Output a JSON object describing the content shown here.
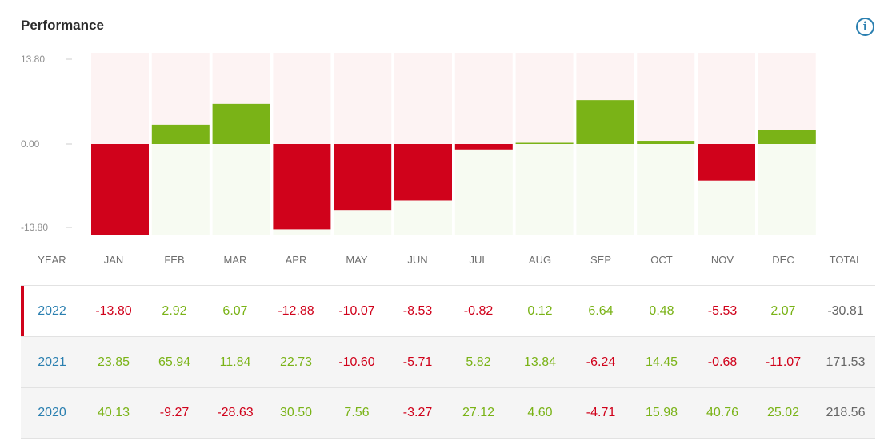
{
  "header": {
    "title": "Performance",
    "info_icon": "info-icon"
  },
  "colors": {
    "positive": "#7ab317",
    "negative": "#d0021b",
    "year_link": "#2a7fb0",
    "total": "#666666",
    "positive_bg": "#f7fbf2",
    "negative_bg": "#fdf3f3"
  },
  "chart_data": {
    "type": "bar",
    "title": "Performance",
    "categories": [
      "JAN",
      "FEB",
      "MAR",
      "APR",
      "MAY",
      "JUN",
      "JUL",
      "AUG",
      "SEP",
      "OCT",
      "NOV",
      "DEC"
    ],
    "series": [
      {
        "values": [
          -13.8,
          2.92,
          6.07,
          -12.88,
          -10.07,
          -8.53,
          -0.82,
          0.12,
          6.64,
          0.48,
          -5.53,
          2.07
        ]
      }
    ],
    "yticks": [
      "13.80",
      "0.00",
      "-13.80"
    ],
    "ylim": [
      -13.8,
      13.8
    ],
    "grid": false,
    "legend": "none"
  },
  "table": {
    "headers": [
      "YEAR",
      "JAN",
      "FEB",
      "MAR",
      "APR",
      "MAY",
      "JUN",
      "JUL",
      "AUG",
      "SEP",
      "OCT",
      "NOV",
      "DEC",
      "TOTAL"
    ],
    "rows": [
      {
        "year": "2022",
        "values": [
          "-13.80",
          "2.92",
          "6.07",
          "-12.88",
          "-10.07",
          "-8.53",
          "-0.82",
          "0.12",
          "6.64",
          "0.48",
          "-5.53",
          "2.07"
        ],
        "total": "-30.81",
        "selected": true
      },
      {
        "year": "2021",
        "values": [
          "23.85",
          "65.94",
          "11.84",
          "22.73",
          "-10.60",
          "-5.71",
          "5.82",
          "13.84",
          "-6.24",
          "14.45",
          "-0.68",
          "-11.07"
        ],
        "total": "171.53",
        "selected": false
      },
      {
        "year": "2020",
        "values": [
          "40.13",
          "-9.27",
          "-28.63",
          "30.50",
          "7.56",
          "-3.27",
          "27.12",
          "4.60",
          "-4.71",
          "15.98",
          "40.76",
          "25.02"
        ],
        "total": "218.56",
        "selected": false
      }
    ]
  }
}
